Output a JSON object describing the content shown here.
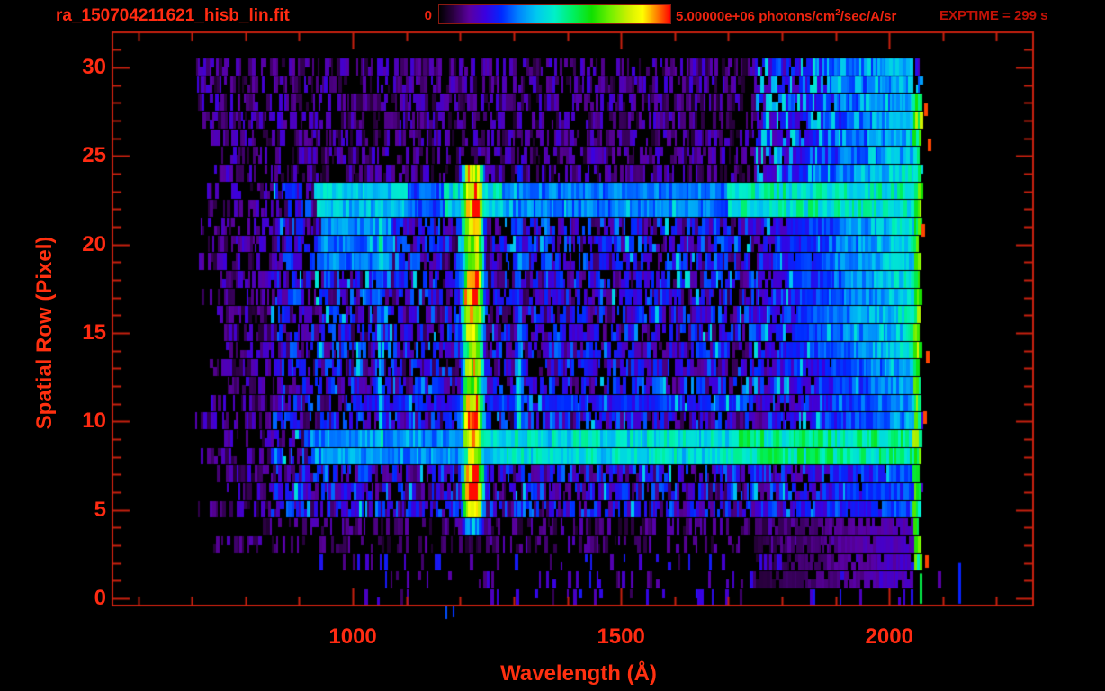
{
  "header": {
    "filename": "ra_150704211621_hisb_lin.fit",
    "exptime": "EXPTIME = 299 s",
    "colorbar": {
      "min_label": "0",
      "max_label": "5.00000e+06 ",
      "units_prefix": "photons/cm",
      "units_sup": "2",
      "units_suffix": "/sec/A/sr"
    }
  },
  "colors": {
    "background": "#000000",
    "frame": "#c8200f",
    "text": "#ff2b12",
    "colorbar_text": "#ee2410",
    "exptime_text": "#c21207"
  },
  "chart_data": {
    "type": "heatmap",
    "title": "ra_150704211621_hisb_lin.fit",
    "xlabel": "Wavelength (Å)",
    "ylabel": "Spatial Row (Pixel)",
    "xlim": [
      552,
      2268
    ],
    "ylim": [
      -0.41,
      31.98
    ],
    "x_ticks": {
      "major": [
        1000,
        1500,
        2000
      ],
      "minor_step": 100
    },
    "y_ticks": {
      "major": [
        0,
        5,
        10,
        15,
        20,
        25,
        30
      ],
      "minor_step": 1
    },
    "intensity_scale": {
      "min": 0,
      "max": 5000000,
      "max_label": "5.00000e+06",
      "units": "photons/cm^2/sec/A/sr"
    },
    "exposure_seconds": 299,
    "grid": false,
    "legend": "none",
    "colormap": [
      [
        0.0,
        "#000000"
      ],
      [
        0.06,
        "#2a0040"
      ],
      [
        0.13,
        "#5a00a0"
      ],
      [
        0.2,
        "#3a00e0"
      ],
      [
        0.27,
        "#0028ff"
      ],
      [
        0.34,
        "#0080ff"
      ],
      [
        0.42,
        "#00c8f0"
      ],
      [
        0.5,
        "#00f0c8"
      ],
      [
        0.58,
        "#00f060"
      ],
      [
        0.66,
        "#10e000"
      ],
      [
        0.74,
        "#70f000"
      ],
      [
        0.82,
        "#d0f000"
      ],
      [
        0.88,
        "#ffff00"
      ],
      [
        0.93,
        "#ff9800"
      ],
      [
        0.97,
        "#ff4400"
      ],
      [
        1.0,
        "#ff0000"
      ]
    ],
    "data_extent": {
      "lambda": [
        705,
        2062
      ],
      "rows": [
        0,
        30
      ]
    },
    "noise_zones": [
      {
        "rows": [
          24,
          30.6
        ],
        "lams": [
          690,
          1750
        ],
        "density": 0.72,
        "range": [
          0.04,
          0.2
        ]
      },
      {
        "rows": [
          24,
          30.6
        ],
        "lams": [
          1750,
          2062
        ],
        "density": 0.75,
        "range": [
          0.1,
          0.48
        ]
      },
      {
        "rows": [
          4.8,
          24
        ],
        "lams": [
          690,
          850
        ],
        "density": 0.7,
        "range": [
          0.04,
          0.2
        ]
      },
      {
        "rows": [
          4.8,
          24
        ],
        "lams": [
          850,
          2062
        ],
        "density": 0.88,
        "range": [
          0.07,
          0.33
        ]
      },
      {
        "rows": [
          2.8,
          4.8
        ],
        "lams": [
          690,
          2062
        ],
        "density": 0.5,
        "range": [
          0.04,
          0.16
        ]
      },
      {
        "rows": [
          -0.5,
          2.8
        ],
        "lams": [
          690,
          2135
        ],
        "density": 0.16,
        "range": [
          0.06,
          0.25
        ]
      },
      {
        "rows": [
          -0.5,
          30.6
        ],
        "lams": [
          2062,
          2135
        ],
        "density": 0.05,
        "range": [
          0.1,
          0.4
        ]
      }
    ],
    "emission_lines": [
      {
        "name": "Lyman-alpha",
        "lambda": 1224,
        "sigma": 10,
        "plateau": 7,
        "peak": 1.0,
        "rows": [
          4,
          24.2
        ],
        "profile": [
          [
            4,
            0.38
          ],
          [
            4.6,
            0.6
          ],
          [
            5.2,
            0.85
          ],
          [
            6,
            1.0
          ],
          [
            7,
            0.92
          ],
          [
            8,
            0.78
          ],
          [
            9,
            0.9
          ],
          [
            10,
            1.0
          ],
          [
            11,
            0.88
          ],
          [
            12,
            0.72
          ],
          [
            13,
            0.8
          ],
          [
            14,
            0.72
          ],
          [
            15,
            0.78
          ],
          [
            16,
            0.88
          ],
          [
            17,
            1.0
          ],
          [
            18,
            0.84
          ],
          [
            19,
            0.78
          ],
          [
            20,
            0.84
          ],
          [
            21,
            0.95
          ],
          [
            22,
            1.0
          ],
          [
            23,
            0.95
          ],
          [
            24,
            0.82
          ]
        ]
      },
      {
        "name": "line-1052",
        "lambda": 1052,
        "sigma": 5,
        "plateau": 0,
        "peak": 0.5,
        "rows": [
          7.8,
          23.4
        ],
        "profile": [
          [
            7.8,
            0.85
          ],
          [
            9,
            1.0
          ],
          [
            10.5,
            0.9
          ],
          [
            12,
            0.78
          ],
          [
            14,
            0.7
          ],
          [
            16,
            0.62
          ],
          [
            18,
            0.72
          ],
          [
            19.5,
            0.95
          ],
          [
            21,
            1.0
          ],
          [
            22.5,
            0.88
          ],
          [
            23.4,
            0.7
          ]
        ]
      },
      {
        "name": "line-1310",
        "lambda": 1310,
        "sigma": 6,
        "plateau": 0,
        "peak": 0.52,
        "rows": [
          7.8,
          24.2
        ],
        "profile": [
          [
            7.8,
            0.95
          ],
          [
            9,
            1.0
          ],
          [
            11,
            0.95
          ],
          [
            13,
            0.88
          ],
          [
            14,
            0.68
          ],
          [
            16,
            0.58
          ],
          [
            18,
            0.58
          ],
          [
            20,
            0.64
          ],
          [
            22,
            0.7
          ],
          [
            24,
            0.58
          ]
        ]
      },
      {
        "name": "line-1362",
        "lambda": 1362,
        "sigma": 5,
        "plateau": 0,
        "peak": 0.36,
        "rows": [
          17,
          22.6
        ],
        "profile": [
          [
            17,
            0.7
          ],
          [
            19,
            1.0
          ],
          [
            21,
            0.95
          ],
          [
            22.6,
            0.7
          ]
        ]
      },
      {
        "name": "line-1495",
        "lambda": 1495,
        "sigma": 5,
        "plateau": 0,
        "peak": 0.32,
        "rows": [
          18.5,
          21.6
        ],
        "profile": [
          [
            18.5,
            0.8
          ],
          [
            20,
            1.0
          ],
          [
            21.6,
            0.8
          ]
        ]
      },
      {
        "name": "line-1676",
        "lambda": 1676,
        "sigma": 7,
        "plateau": 0,
        "peak": 0.33,
        "rows": [
          17.5,
          21.6
        ],
        "profile": [
          [
            17.5,
            0.8
          ],
          [
            19.5,
            1.0
          ],
          [
            21.6,
            0.8
          ]
        ]
      }
    ],
    "horizontal_bands": [
      {
        "name": "bright-band-rows-8-9",
        "rows": [
          7.6,
          9.4
        ],
        "segments": [
          [
            920,
            1240,
            0.36
          ],
          [
            1240,
            1700,
            0.46
          ],
          [
            1700,
            2062,
            0.54
          ]
        ]
      },
      {
        "name": "bright-band-rows-22-23",
        "rows": [
          21.2,
          23.4
        ],
        "segments": [
          [
            930,
            1100,
            0.42
          ],
          [
            1100,
            1170,
            0.3
          ],
          [
            1170,
            1280,
            0.46
          ],
          [
            1280,
            1700,
            0.33
          ],
          [
            1700,
            2062,
            0.5
          ]
        ]
      },
      {
        "name": "faint-band-row-11",
        "rows": [
          10.4,
          11.6
        ],
        "segments": [
          [
            1000,
            1750,
            0.24
          ]
        ]
      },
      {
        "name": "blue-patch",
        "rows": [
          18.8,
          23.2
        ],
        "segments": [
          [
            940,
            1075,
            0.34
          ]
        ]
      }
    ],
    "right_region": {
      "lambda": [
        1750,
        2045
      ],
      "rows": [
        0.8,
        30.6
      ],
      "base": 0.12,
      "gain": 0.26,
      "row_factors": [
        [
          24.2,
          30.6,
          1.05
        ],
        [
          14,
          24.2,
          1.25
        ],
        [
          7.6,
          14,
          1.0
        ],
        [
          4.8,
          7.6,
          0.8
        ],
        [
          0.8,
          4.8,
          0.45
        ]
      ]
    },
    "edge_column": {
      "lambda": [
        2045,
        2061
      ],
      "rows": [
        1.2,
        28.6
      ],
      "value": 0.56,
      "jitter": 0.2
    },
    "hot_specks": [
      {
        "lambda": 2070,
        "row": 2.1
      },
      {
        "lambda": 2066,
        "row": 10.2
      },
      {
        "lambda": 2072,
        "row": 13.6
      },
      {
        "lambda": 2064,
        "row": 20.8
      },
      {
        "lambda": 2075,
        "row": 25.6
      },
      {
        "lambda": 2068,
        "row": 27.6
      }
    ],
    "column_tails": [
      {
        "lambda": 2059,
        "rows": [
          -0.3,
          1.4
        ],
        "value": 0.6
      },
      {
        "lambda": 2131,
        "rows": [
          -0.3,
          2.0
        ],
        "value": 0.26
      }
    ],
    "below_axis_spikes": [
      {
        "lambda": 1172,
        "drop": 14,
        "value": 0.3
      },
      {
        "lambda": 1186,
        "drop": 12,
        "value": 0.28
      }
    ]
  }
}
